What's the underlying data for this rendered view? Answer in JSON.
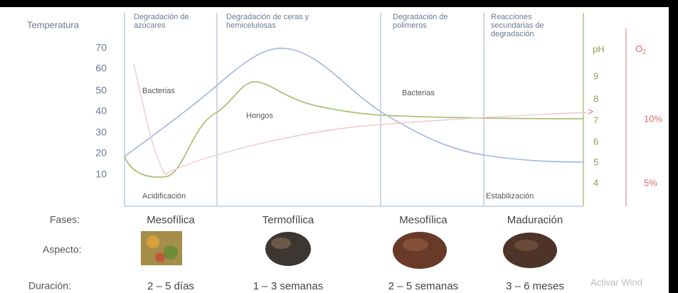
{
  "axes": {
    "temperature": {
      "title": "Temperatura",
      "ticks": [
        70,
        60,
        50,
        40,
        30,
        20,
        10
      ]
    },
    "ph": {
      "title": "pH",
      "ticks": [
        9,
        8,
        7,
        6,
        5,
        4
      ]
    },
    "oxygen": {
      "title": "O",
      "subscript": "2",
      "ticks": [
        "10%",
        "5%"
      ]
    }
  },
  "stages": [
    "Degradación de azúcares",
    "Degradación de ceras y hemicelulosas",
    "Degradación de polimeros",
    "Reacciones secundarias de degradación"
  ],
  "annotations": {
    "bacteria_1": "Bacterias",
    "fungi": "Hongos",
    "bacteria_2": "Bacterias",
    "acidification": "Acidificación",
    "stabilization": "Estabilización"
  },
  "rows": {
    "phases": {
      "label": "Fases:",
      "values": [
        "Mesofílica",
        "Termofílica",
        "Mesofílica",
        "Maduración"
      ]
    },
    "appearance": {
      "label": "Aspecto:"
    },
    "duration": {
      "label": "Duración:",
      "values": [
        "2 – 5 días",
        "1 – 3 semanas",
        "2 – 5 semanas",
        "3 – 6 meses"
      ]
    }
  },
  "watermark": "Activar Wind"
}
